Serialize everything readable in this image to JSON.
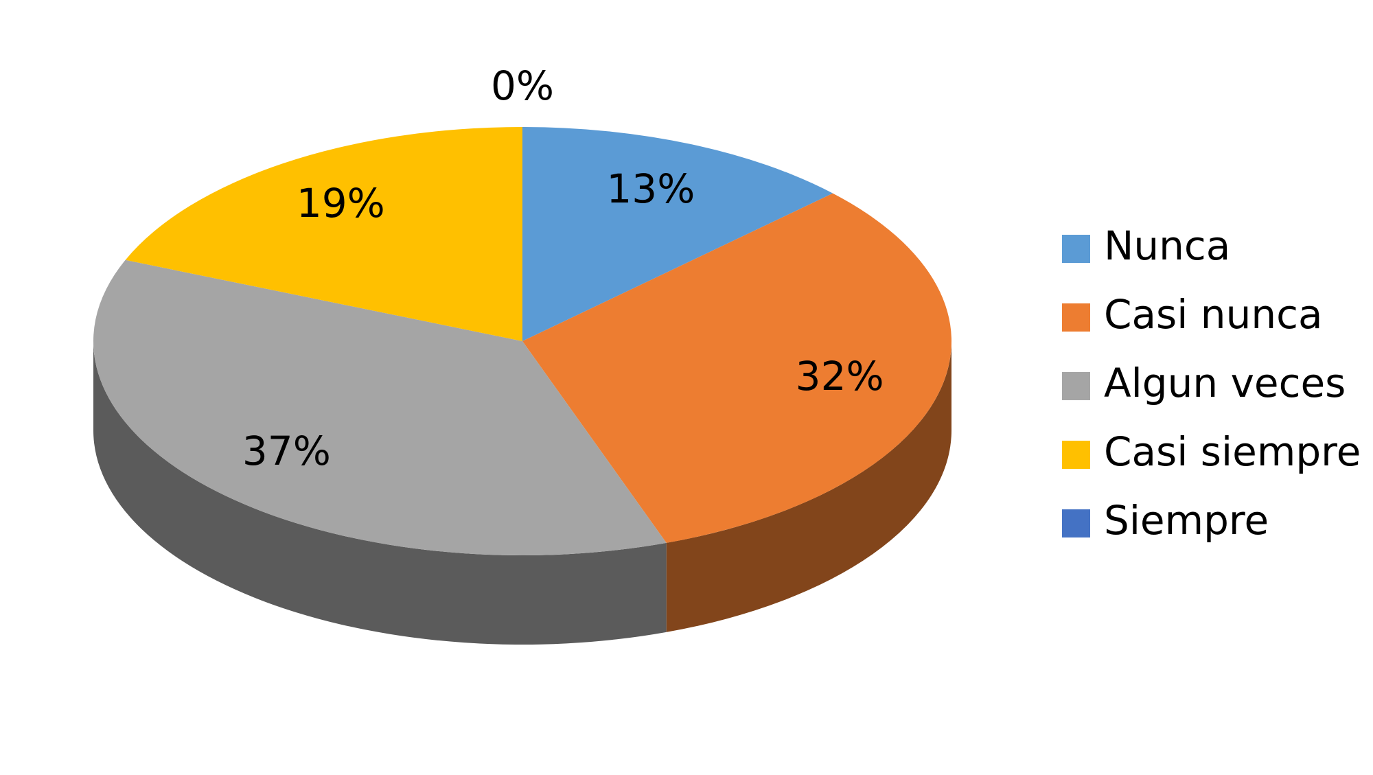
{
  "chart_data": {
    "type": "pie",
    "categories": [
      "Nunca",
      "Casi nunca",
      "Algun veces",
      "Casi siempre",
      "Siempre"
    ],
    "values": [
      13,
      32,
      37,
      19,
      0
    ],
    "value_labels": [
      "13%",
      "32%",
      "37%",
      "19%",
      "0%"
    ],
    "colors": [
      "#5b9bd5",
      "#ed7d31",
      "#a5a5a5",
      "#ffc000",
      "#4472c4"
    ],
    "legend": "right"
  }
}
